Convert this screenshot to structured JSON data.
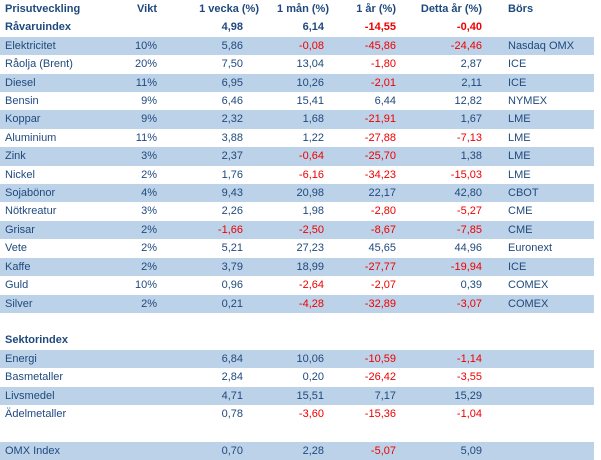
{
  "colors": {
    "text_navy": "#1F497D",
    "negative_red": "#EE0000",
    "row_band_blue": "#BCD2E8"
  },
  "table": {
    "columns": [
      "Prisutveckling",
      "Vikt",
      "1 vecka (%)",
      "1 mån (%)",
      "1 år (%)",
      "Detta år (%)",
      "Börs"
    ],
    "rows": [
      {
        "name": "Råvaruindex",
        "vikt": "",
        "vecka": "4,98",
        "man": "6,14",
        "ar": "-14,55",
        "detta": "-0,40",
        "bors": "",
        "bold": true,
        "band": false
      },
      {
        "name": "Elektricitet",
        "vikt": "10%",
        "vecka": "5,86",
        "man": "-0,08",
        "ar": "-45,86",
        "detta": "-24,46",
        "bors": "Nasdaq OMX",
        "band": true
      },
      {
        "name": "Råolja (Brent)",
        "vikt": "20%",
        "vecka": "7,50",
        "man": "13,04",
        "ar": "-1,80",
        "detta": "2,87",
        "bors": "ICE",
        "band": false
      },
      {
        "name": "Diesel",
        "vikt": "11%",
        "vecka": "6,95",
        "man": "10,26",
        "ar": "-2,01",
        "detta": "2,11",
        "bors": "ICE",
        "band": true
      },
      {
        "name": "Bensin",
        "vikt": "9%",
        "vecka": "6,46",
        "man": "15,41",
        "ar": "6,44",
        "detta": "12,82",
        "bors": "NYMEX",
        "band": false
      },
      {
        "name": "Koppar",
        "vikt": "9%",
        "vecka": "2,32",
        "man": "1,68",
        "ar": "-21,91",
        "detta": "1,67",
        "bors": "LME",
        "band": true
      },
      {
        "name": "Aluminium",
        "vikt": "11%",
        "vecka": "3,88",
        "man": "1,22",
        "ar": "-27,88",
        "detta": "-7,13",
        "bors": "LME",
        "band": false
      },
      {
        "name": "Zink",
        "vikt": "3%",
        "vecka": "2,37",
        "man": "-0,64",
        "ar": "-25,70",
        "detta": "1,38",
        "bors": "LME",
        "band": true
      },
      {
        "name": "Nickel",
        "vikt": "2%",
        "vecka": "1,76",
        "man": "-6,16",
        "ar": "-34,23",
        "detta": "-15,03",
        "bors": "LME",
        "band": false
      },
      {
        "name": "Sojabönor",
        "vikt": "4%",
        "vecka": "9,43",
        "man": "20,98",
        "ar": "22,17",
        "detta": "42,80",
        "bors": "CBOT",
        "band": true
      },
      {
        "name": "Nötkreatur",
        "vikt": "3%",
        "vecka": "2,26",
        "man": "1,98",
        "ar": "-2,80",
        "detta": "-5,27",
        "bors": "CME",
        "band": false
      },
      {
        "name": "Grisar",
        "vikt": "2%",
        "vecka": "-1,66",
        "man": "-2,50",
        "ar": "-8,67",
        "detta": "-7,85",
        "bors": "CME",
        "band": true
      },
      {
        "name": "Vete",
        "vikt": "2%",
        "vecka": "5,21",
        "man": "27,23",
        "ar": "45,65",
        "detta": "44,96",
        "bors": "Euronext",
        "band": false
      },
      {
        "name": "Kaffe",
        "vikt": "2%",
        "vecka": "3,79",
        "man": "18,99",
        "ar": "-27,77",
        "detta": "-19,94",
        "bors": "ICE",
        "band": true
      },
      {
        "name": "Guld",
        "vikt": "10%",
        "vecka": "0,96",
        "man": "-2,64",
        "ar": "-2,07",
        "detta": "0,39",
        "bors": "COMEX",
        "band": false
      },
      {
        "name": "Silver",
        "vikt": "2%",
        "vecka": "0,21",
        "man": "-4,28",
        "ar": "-32,89",
        "detta": "-3,07",
        "bors": "COMEX",
        "band": true
      },
      {
        "blank": true
      },
      {
        "name": "Sektorindex",
        "vikt": "",
        "vecka": "",
        "man": "",
        "ar": "",
        "detta": "",
        "bors": "",
        "bold": true,
        "section": true,
        "band": false
      },
      {
        "name": "Energi",
        "vikt": "",
        "vecka": "6,84",
        "man": "10,06",
        "ar": "-10,59",
        "detta": "-1,14",
        "bors": "",
        "band": true
      },
      {
        "name": "Basmetaller",
        "vikt": "",
        "vecka": "2,84",
        "man": "0,20",
        "ar": "-26,42",
        "detta": "-3,55",
        "bors": "",
        "band": false
      },
      {
        "name": "Livsmedel",
        "vikt": "",
        "vecka": "4,71",
        "man": "15,51",
        "ar": "7,17",
        "detta": "15,29",
        "bors": "",
        "band": true
      },
      {
        "name": "Ädelmetaller",
        "vikt": "",
        "vecka": "0,78",
        "man": "-3,60",
        "ar": "-15,36",
        "detta": "-1,04",
        "bors": "",
        "band": false
      },
      {
        "blank": true
      },
      {
        "name": "OMX Index",
        "vikt": "",
        "vecka": "0,70",
        "man": "2,28",
        "ar": "-5,07",
        "detta": "5,09",
        "bors": "",
        "band": true
      }
    ]
  }
}
